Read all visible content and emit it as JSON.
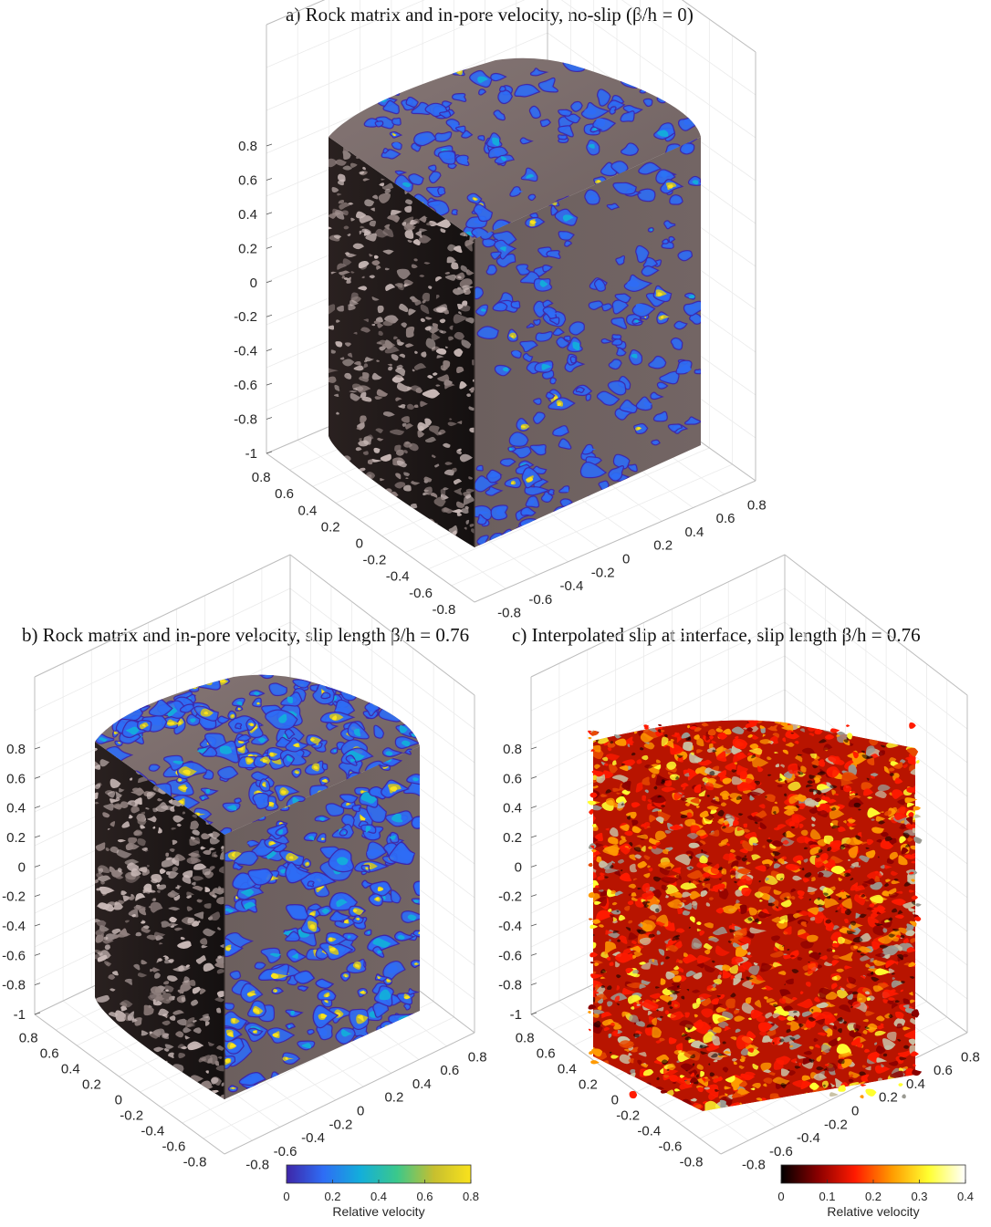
{
  "panels": [
    {
      "id": "a",
      "title": "a) Rock matrix and in-pore velocity, no-slip (β/h = 0)",
      "z_ticks": [
        "0.8",
        "0.6",
        "0.4",
        "0.2",
        "0",
        "-0.2",
        "-0.4",
        "-0.6",
        "-0.8",
        "-1"
      ],
      "y_ticks": [
        "0.8",
        "0.6",
        "0.4",
        "0.2",
        "0",
        "-0.2",
        "-0.4",
        "-0.6",
        "-0.8"
      ],
      "x_ticks": [
        "-0.8",
        "-0.6",
        "-0.4",
        "-0.2",
        "0",
        "0.2",
        "0.4",
        "0.6",
        "0.8"
      ],
      "render": "rock-velocity",
      "velocity_level": "low"
    },
    {
      "id": "b",
      "title": "b) Rock matrix and in-pore velocity, slip length β/h = 0.76",
      "z_ticks": [
        "0.8",
        "0.6",
        "0.4",
        "0.2",
        "0",
        "-0.2",
        "-0.4",
        "-0.6",
        "-0.8",
        "-1"
      ],
      "y_ticks": [
        "0.8",
        "0.6",
        "0.4",
        "0.2",
        "0",
        "-0.2",
        "-0.4",
        "-0.6",
        "-0.8"
      ],
      "x_ticks": [
        "-0.8",
        "-0.6",
        "-0.4",
        "-0.2",
        "0",
        "0.2",
        "0.4",
        "0.6",
        "0.8"
      ],
      "render": "rock-velocity",
      "velocity_level": "high"
    },
    {
      "id": "c",
      "title": "c) Interpolated slip at interface, slip length β/h = 0.76",
      "z_ticks": [
        "0.8",
        "0.6",
        "0.4",
        "0.2",
        "0",
        "-0.2",
        "-0.4",
        "-0.6",
        "-0.8",
        "-1"
      ],
      "y_ticks": [
        "0.8",
        "0.6",
        "0.4",
        "0.2",
        "0",
        "-0.2",
        "-0.4",
        "-0.6",
        "-0.8"
      ],
      "x_ticks": [
        "-0.8",
        "-0.6",
        "-0.4",
        "-0.2",
        "0",
        "0.2",
        "0.4",
        "0.6",
        "0.8"
      ],
      "render": "interface-slip"
    }
  ],
  "colorbars": [
    {
      "id": "parula",
      "label": "Relative velocity",
      "ticks": [
        "0",
        "0.2",
        "0.4",
        "0.6",
        "0.8"
      ],
      "range": [
        0,
        0.8
      ],
      "colors": [
        "#3e26a8",
        "#2e6df5",
        "#13aeda",
        "#3bc88b",
        "#c7bf2f",
        "#f9e21c"
      ]
    },
    {
      "id": "hot",
      "label": "Relative velocity",
      "ticks": [
        "0",
        "0.1",
        "0.2",
        "0.3",
        "0.4"
      ],
      "range": [
        0,
        0.4
      ],
      "colors": [
        "#000000",
        "#8a0000",
        "#ff1a00",
        "#ff9a00",
        "#ffff30",
        "#ffffff"
      ]
    }
  ],
  "colors": {
    "rock_top": "#7a6c6b",
    "rock_dark": "#1e1716",
    "rock_highlight": "#c9b9b7",
    "axis_box": "#bdbdbd",
    "grid": "#ebebeb"
  }
}
